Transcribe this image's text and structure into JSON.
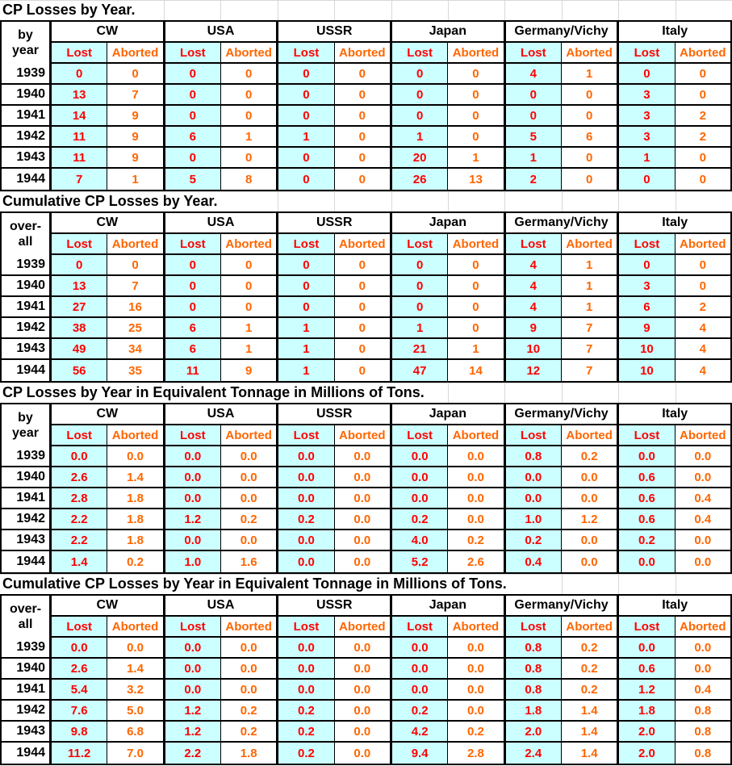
{
  "colors": {
    "title_text": "#000000",
    "header_text": "#000000",
    "year_text": "#000000",
    "lost_text": "#FF0000",
    "aborted_text": "#FF6600",
    "lost_cell_bg": "#CCFFFF",
    "aborted_cell_bg": "#FFFFFF",
    "table_border": "#000000",
    "faint_gridline": "#D8D8D8",
    "page_bg": "#FFFFFF"
  },
  "countries": [
    "CW",
    "USA",
    "USSR",
    "Japan",
    "Germany/Vichy",
    "Italy"
  ],
  "country_slugs": [
    "cw",
    "usa",
    "ussr",
    "japan",
    "germany-vichy",
    "italy"
  ],
  "subheaders": {
    "lost": "Lost",
    "aborted": "Aborted"
  },
  "tables": [
    {
      "title": "CP Losses by Year.",
      "year_header": [
        "by",
        "year"
      ],
      "rows": [
        {
          "year": "1939",
          "values": [
            "0",
            "0",
            "0",
            "0",
            "0",
            "0",
            "0",
            "0",
            "4",
            "1",
            "0",
            "0"
          ]
        },
        {
          "year": "1940",
          "values": [
            "13",
            "7",
            "0",
            "0",
            "0",
            "0",
            "0",
            "0",
            "0",
            "0",
            "3",
            "0"
          ]
        },
        {
          "year": "1941",
          "values": [
            "14",
            "9",
            "0",
            "0",
            "0",
            "0",
            "0",
            "0",
            "0",
            "0",
            "3",
            "2"
          ]
        },
        {
          "year": "1942",
          "values": [
            "11",
            "9",
            "6",
            "1",
            "1",
            "0",
            "1",
            "0",
            "5",
            "6",
            "3",
            "2"
          ]
        },
        {
          "year": "1943",
          "values": [
            "11",
            "9",
            "0",
            "0",
            "0",
            "0",
            "20",
            "1",
            "1",
            "0",
            "1",
            "0"
          ]
        },
        {
          "year": "1944",
          "values": [
            "7",
            "1",
            "5",
            "8",
            "0",
            "0",
            "26",
            "13",
            "2",
            "0",
            "0",
            "0"
          ]
        }
      ]
    },
    {
      "title": "Cumulative CP Losses by Year.",
      "year_header": [
        "over-",
        "all"
      ],
      "rows": [
        {
          "year": "1939",
          "values": [
            "0",
            "0",
            "0",
            "0",
            "0",
            "0",
            "0",
            "0",
            "4",
            "1",
            "0",
            "0"
          ]
        },
        {
          "year": "1940",
          "values": [
            "13",
            "7",
            "0",
            "0",
            "0",
            "0",
            "0",
            "0",
            "4",
            "1",
            "3",
            "0"
          ]
        },
        {
          "year": "1941",
          "values": [
            "27",
            "16",
            "0",
            "0",
            "0",
            "0",
            "0",
            "0",
            "4",
            "1",
            "6",
            "2"
          ]
        },
        {
          "year": "1942",
          "values": [
            "38",
            "25",
            "6",
            "1",
            "1",
            "0",
            "1",
            "0",
            "9",
            "7",
            "9",
            "4"
          ]
        },
        {
          "year": "1943",
          "values": [
            "49",
            "34",
            "6",
            "1",
            "1",
            "0",
            "21",
            "1",
            "10",
            "7",
            "10",
            "4"
          ]
        },
        {
          "year": "1944",
          "values": [
            "56",
            "35",
            "11",
            "9",
            "1",
            "0",
            "47",
            "14",
            "12",
            "7",
            "10",
            "4"
          ]
        }
      ]
    },
    {
      "title": "CP Losses by Year in Equivalent Tonnage in Millions of Tons.",
      "year_header": [
        "by",
        "year"
      ],
      "rows": [
        {
          "year": "1939",
          "values": [
            "0.0",
            "0.0",
            "0.0",
            "0.0",
            "0.0",
            "0.0",
            "0.0",
            "0.0",
            "0.8",
            "0.2",
            "0.0",
            "0.0"
          ]
        },
        {
          "year": "1940",
          "values": [
            "2.6",
            "1.4",
            "0.0",
            "0.0",
            "0.0",
            "0.0",
            "0.0",
            "0.0",
            "0.0",
            "0.0",
            "0.6",
            "0.0"
          ]
        },
        {
          "year": "1941",
          "values": [
            "2.8",
            "1.8",
            "0.0",
            "0.0",
            "0.0",
            "0.0",
            "0.0",
            "0.0",
            "0.0",
            "0.0",
            "0.6",
            "0.4"
          ]
        },
        {
          "year": "1942",
          "values": [
            "2.2",
            "1.8",
            "1.2",
            "0.2",
            "0.2",
            "0.0",
            "0.2",
            "0.0",
            "1.0",
            "1.2",
            "0.6",
            "0.4"
          ]
        },
        {
          "year": "1943",
          "values": [
            "2.2",
            "1.8",
            "0.0",
            "0.0",
            "0.0",
            "0.0",
            "4.0",
            "0.2",
            "0.2",
            "0.0",
            "0.2",
            "0.0"
          ]
        },
        {
          "year": "1944",
          "values": [
            "1.4",
            "0.2",
            "1.0",
            "1.6",
            "0.0",
            "0.0",
            "5.2",
            "2.6",
            "0.4",
            "0.0",
            "0.0",
            "0.0"
          ]
        }
      ]
    },
    {
      "title": "Cumulative CP Losses by Year in Equivalent Tonnage in Millions of Tons.",
      "year_header": [
        "over-",
        "all"
      ],
      "rows": [
        {
          "year": "1939",
          "values": [
            "0.0",
            "0.0",
            "0.0",
            "0.0",
            "0.0",
            "0.0",
            "0.0",
            "0.0",
            "0.8",
            "0.2",
            "0.0",
            "0.0"
          ]
        },
        {
          "year": "1940",
          "values": [
            "2.6",
            "1.4",
            "0.0",
            "0.0",
            "0.0",
            "0.0",
            "0.0",
            "0.0",
            "0.8",
            "0.2",
            "0.6",
            "0.0"
          ]
        },
        {
          "year": "1941",
          "values": [
            "5.4",
            "3.2",
            "0.0",
            "0.0",
            "0.0",
            "0.0",
            "0.0",
            "0.0",
            "0.8",
            "0.2",
            "1.2",
            "0.4"
          ]
        },
        {
          "year": "1942",
          "values": [
            "7.6",
            "5.0",
            "1.2",
            "0.2",
            "0.2",
            "0.0",
            "0.2",
            "0.0",
            "1.8",
            "1.4",
            "1.8",
            "0.8"
          ]
        },
        {
          "year": "1943",
          "values": [
            "9.8",
            "6.8",
            "1.2",
            "0.2",
            "0.2",
            "0.0",
            "4.2",
            "0.2",
            "2.0",
            "1.4",
            "2.0",
            "0.8"
          ]
        },
        {
          "year": "1944",
          "values": [
            "11.2",
            "7.0",
            "2.2",
            "1.8",
            "0.2",
            "0.0",
            "9.4",
            "2.8",
            "2.4",
            "1.4",
            "2.0",
            "0.8"
          ]
        }
      ]
    }
  ]
}
